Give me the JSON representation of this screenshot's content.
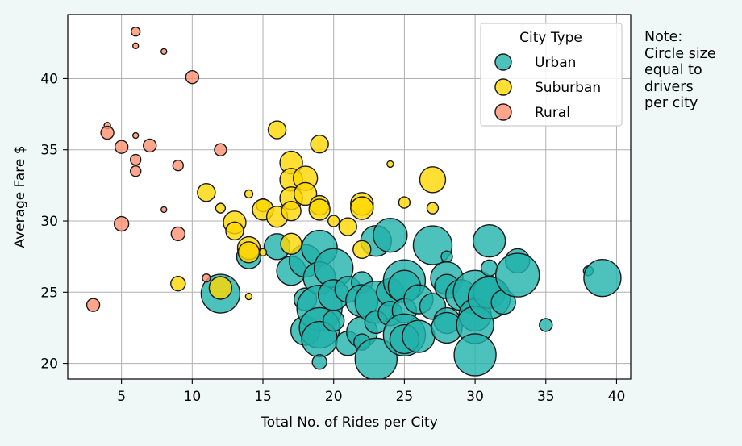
{
  "chart_data": {
    "type": "scatter",
    "title": "",
    "xlabel": "Total No. of Rides per City",
    "ylabel": "Average Fare $",
    "xlim": [
      1.2,
      41
    ],
    "ylim": [
      18.9,
      44.5
    ],
    "xticks": [
      5,
      10,
      15,
      20,
      25,
      30,
      35,
      40
    ],
    "yticks": [
      20,
      25,
      30,
      35,
      40
    ],
    "grid": true,
    "legend": {
      "title": "City Type",
      "placement": "top-right",
      "entries": [
        "Urban",
        "Suburban",
        "Rural"
      ]
    },
    "note": "Note:\nCircle size\nequal to\ndrivers\nper city",
    "series": [
      {
        "name": "Urban",
        "color": "#20b2aa",
        "points": [
          [
            12,
            24.9,
            48
          ],
          [
            14,
            27.5,
            30
          ],
          [
            16,
            28.2,
            32
          ],
          [
            17,
            26.5,
            36
          ],
          [
            18,
            27.2,
            40
          ],
          [
            18,
            24.5,
            28
          ],
          [
            18,
            22.3,
            36
          ],
          [
            19,
            28.1,
            44
          ],
          [
            19,
            26.0,
            40
          ],
          [
            19,
            23.9,
            56
          ],
          [
            19,
            22.5,
            50
          ],
          [
            19,
            21.7,
            44
          ],
          [
            19,
            20.1,
            18
          ],
          [
            20,
            26.7,
            48
          ],
          [
            20,
            24.8,
            38
          ],
          [
            20,
            23.0,
            26
          ],
          [
            21,
            25.2,
            32
          ],
          [
            21,
            21.4,
            30
          ],
          [
            22,
            25.7,
            26
          ],
          [
            22,
            24.4,
            40
          ],
          [
            22,
            22.2,
            38
          ],
          [
            22,
            21.5,
            20
          ],
          [
            23,
            28.6,
            38
          ],
          [
            23,
            24.3,
            52
          ],
          [
            23,
            22.9,
            28
          ],
          [
            23,
            20.3,
            52
          ],
          [
            24,
            29.0,
            42
          ],
          [
            24,
            25.0,
            34
          ],
          [
            24,
            23.5,
            30
          ],
          [
            25,
            25.8,
            52
          ],
          [
            25,
            25.4,
            40
          ],
          [
            25,
            23.7,
            30
          ],
          [
            25,
            22.0,
            52
          ],
          [
            25,
            21.7,
            36
          ],
          [
            26,
            24.5,
            36
          ],
          [
            26,
            21.9,
            40
          ],
          [
            27,
            28.3,
            48
          ],
          [
            27,
            24.0,
            32
          ],
          [
            28,
            27.5,
            14
          ],
          [
            28,
            26.0,
            40
          ],
          [
            28,
            25.4,
            30
          ],
          [
            28,
            23.0,
            32
          ],
          [
            28,
            22.5,
            38
          ],
          [
            29,
            24.8,
            38
          ],
          [
            30,
            25.0,
            54
          ],
          [
            30,
            23.4,
            40
          ],
          [
            30,
            22.7,
            46
          ],
          [
            30,
            20.6,
            52
          ],
          [
            31,
            28.6,
            40
          ],
          [
            31,
            26.7,
            20
          ],
          [
            31,
            25.0,
            40
          ],
          [
            31,
            24.6,
            52
          ],
          [
            32,
            24.3,
            30
          ],
          [
            33,
            27.2,
            30
          ],
          [
            33,
            26.2,
            54
          ],
          [
            35,
            22.7,
            16
          ],
          [
            38,
            26.5,
            12
          ],
          [
            39,
            26.0,
            46
          ]
        ]
      },
      {
        "name": "Suburban",
        "color": "#ffd700",
        "points": [
          [
            9,
            25.6,
            18
          ],
          [
            11,
            32.0,
            22
          ],
          [
            12,
            30.9,
            12
          ],
          [
            12,
            25.3,
            28
          ],
          [
            13,
            29.9,
            28
          ],
          [
            13,
            29.3,
            22
          ],
          [
            14,
            31.9,
            10
          ],
          [
            14,
            28.1,
            28
          ],
          [
            14,
            27.8,
            26
          ],
          [
            14,
            24.7,
            8
          ],
          [
            15,
            31.1,
            16
          ],
          [
            15,
            30.8,
            26
          ],
          [
            15,
            27.8,
            9
          ],
          [
            16,
            36.4,
            22
          ],
          [
            16,
            30.3,
            26
          ],
          [
            17,
            34.1,
            28
          ],
          [
            17,
            32.9,
            28
          ],
          [
            17,
            31.6,
            28
          ],
          [
            17,
            30.7,
            24
          ],
          [
            17,
            28.4,
            26
          ],
          [
            18,
            33.0,
            30
          ],
          [
            18,
            31.9,
            28
          ],
          [
            19,
            35.4,
            22
          ],
          [
            19,
            31.1,
            24
          ],
          [
            19,
            30.8,
            26
          ],
          [
            20,
            30.0,
            14
          ],
          [
            21,
            29.6,
            22
          ],
          [
            22,
            31.2,
            28
          ],
          [
            22,
            30.9,
            28
          ],
          [
            22,
            28.0,
            22
          ],
          [
            24,
            34.0,
            8
          ],
          [
            25,
            31.3,
            14
          ],
          [
            27,
            32.9,
            32
          ],
          [
            27,
            30.9,
            14
          ]
        ]
      },
      {
        "name": "Rural",
        "color": "#ff9070",
        "points": [
          [
            3,
            24.1,
            16
          ],
          [
            4,
            36.7,
            8
          ],
          [
            4,
            36.2,
            16
          ],
          [
            5,
            35.2,
            16
          ],
          [
            5,
            29.8,
            18
          ],
          [
            6,
            43.3,
            11
          ],
          [
            6,
            42.3,
            7
          ],
          [
            6,
            36.0,
            7
          ],
          [
            6,
            34.3,
            13
          ],
          [
            6,
            33.5,
            13
          ],
          [
            7,
            35.3,
            16
          ],
          [
            8,
            41.9,
            7
          ],
          [
            8,
            30.8,
            7
          ],
          [
            9,
            33.9,
            13
          ],
          [
            9,
            29.1,
            17
          ],
          [
            10,
            40.1,
            16
          ],
          [
            11,
            26.0,
            10
          ],
          [
            12,
            35.0,
            15
          ]
        ]
      }
    ]
  }
}
